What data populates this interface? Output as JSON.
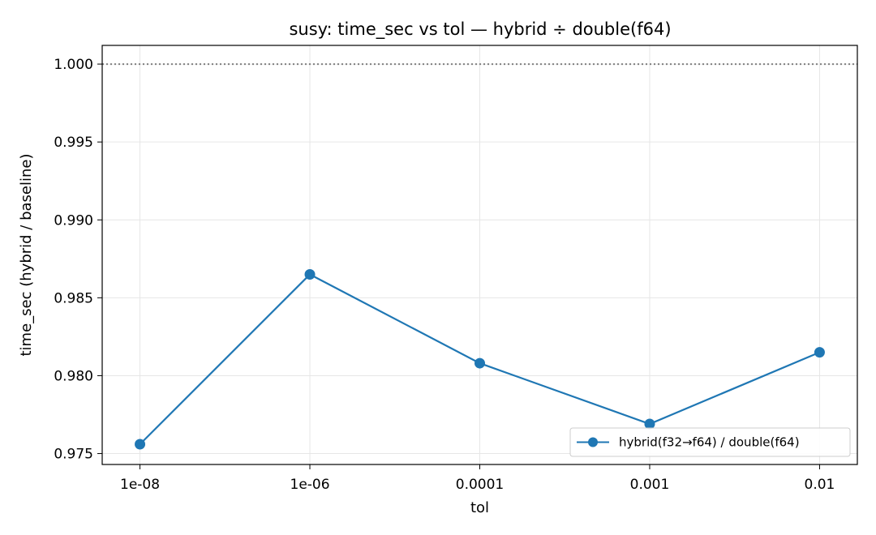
{
  "chart_data": {
    "type": "line",
    "title": "susy: time_sec vs tol — hybrid ÷ double(f64)",
    "xlabel": "tol",
    "ylabel": "time_sec (hybrid / baseline)",
    "categories": [
      "1e-08",
      "1e-06",
      "0.0001",
      "0.001",
      "0.01"
    ],
    "series": [
      {
        "name": "hybrid(f32→f64) / double(f64)",
        "values": [
          0.9756,
          0.9865,
          0.9808,
          0.9769,
          0.9815
        ],
        "color": "#1f77b4"
      }
    ],
    "reference_line": {
      "y": 1.0,
      "style": "dotted",
      "color": "#808080"
    },
    "ylim": [
      0.9743,
      1.0012
    ],
    "yticks": [
      0.975,
      0.98,
      0.985,
      0.99,
      0.995,
      1.0
    ],
    "ytick_labels": [
      "0.975",
      "0.980",
      "0.985",
      "0.990",
      "0.995",
      "1.000"
    ],
    "grid": true,
    "legend_position": "lower-right"
  }
}
